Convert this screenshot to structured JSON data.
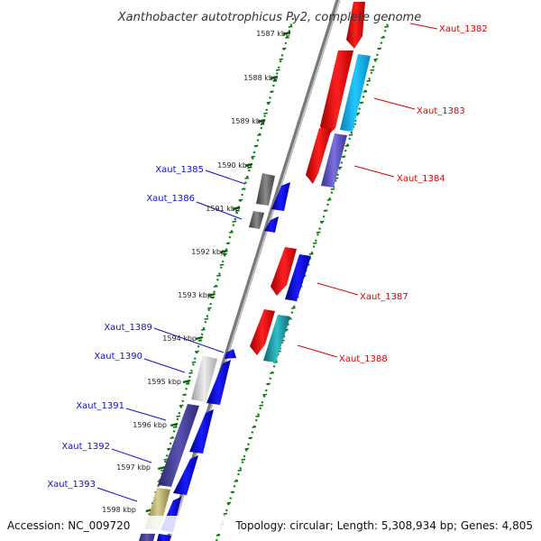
{
  "title": "Xanthobacter autotrophicus Py2, complete genome",
  "footer": {
    "accession": "Accession: NC_009720",
    "summary": "Topology: circular; Length: 5,308,934 bp; Genes: 4,805"
  },
  "colors": {
    "forward_gene": "#ff0000",
    "reverse_gene": "#0000ee",
    "forward_label": "#dd0000",
    "reverse_label": "#1010cc",
    "backbone": "#808080",
    "tick": "#006600",
    "cyan_feature": "#19b4ee",
    "purple_feature": "#5a4fc0",
    "gray_feature": "#666666",
    "khaki_feature": "#b8b070"
  },
  "kbp_ticks": [
    "1587 kbp",
    "1588 kbp",
    "1589 kbp",
    "1590 kbp",
    "1591 kbp",
    "1592 kbp",
    "1593 kbp",
    "1594 kbp",
    "1595 kbp",
    "1596 kbp",
    "1597 kbp",
    "1598 kbp"
  ],
  "forward_labels": [
    "Xaut_1382",
    "Xaut_1383",
    "Xaut_1384",
    "Xaut_1387",
    "Xaut_1388"
  ],
  "reverse_labels": [
    "Xaut_1385",
    "Xaut_1386",
    "Xaut_1389",
    "Xaut_1390",
    "Xaut_1391",
    "Xaut_1392",
    "Xaut_1393"
  ]
}
